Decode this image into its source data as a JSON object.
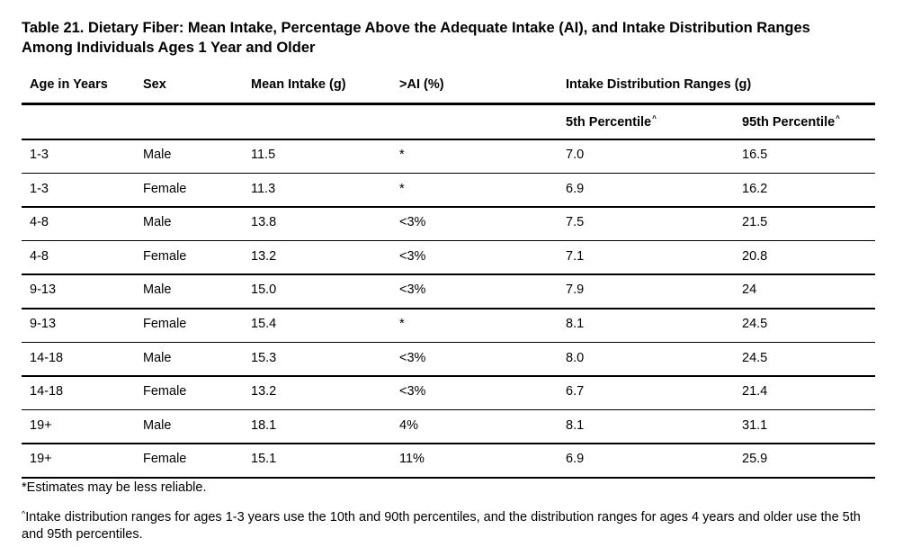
{
  "table": {
    "title_line1": "Table 21. Dietary Fiber: Mean Intake, Percentage Above the Adequate Intake (AI), and Intake Distribution Ranges",
    "title_line2": "Among Individuals Ages 1 Year and Older",
    "headers": {
      "age": "Age in Years",
      "sex": "Sex",
      "mean": "Mean Intake (g)",
      "above_ai": ">AI (%)",
      "ranges": "Intake Distribution Ranges (g)",
      "p5": "5th Percentile",
      "p95": "95th Percentile",
      "caret": "^"
    },
    "rows": [
      {
        "age": "1-3",
        "sex": "Male",
        "mean": "11.5",
        "above_ai": "*",
        "p5": "7.0",
        "p95": "16.5"
      },
      {
        "age": "1-3",
        "sex": "Female",
        "mean": "11.3",
        "above_ai": "*",
        "p5": "6.9",
        "p95": "16.2"
      },
      {
        "age": "4-8",
        "sex": "Male",
        "mean": "13.8",
        "above_ai": "<3%",
        "p5": "7.5",
        "p95": "21.5"
      },
      {
        "age": "4-8",
        "sex": "Female",
        "mean": "13.2",
        "above_ai": "<3%",
        "p5": "7.1",
        "p95": "20.8"
      },
      {
        "age": "9-13",
        "sex": "Male",
        "mean": "15.0",
        "above_ai": "<3%",
        "p5": "7.9",
        "p95": "24"
      },
      {
        "age": "9-13",
        "sex": "Female",
        "mean": "15.4",
        "above_ai": "*",
        "p5": "8.1",
        "p95": "24.5"
      },
      {
        "age": "14-18",
        "sex": "Male",
        "mean": "15.3",
        "above_ai": "<3%",
        "p5": "8.0",
        "p95": "24.5"
      },
      {
        "age": "14-18",
        "sex": "Female",
        "mean": "13.2",
        "above_ai": "<3%",
        "p5": "6.7",
        "p95": "21.4"
      },
      {
        "age": "19+",
        "sex": "Male",
        "mean": "18.1",
        "above_ai": "4%",
        "p5": "8.1",
        "p95": "31.1"
      },
      {
        "age": "19+",
        "sex": "Female",
        "mean": "15.1",
        "above_ai": "11%",
        "p5": "6.9",
        "p95": "25.9"
      }
    ],
    "footnotes": {
      "note1": "*Estimates may be less reliable.",
      "note2_mark": "^",
      "note2": "Intake distribution ranges for ages 1-3 years use the 10th and 90th percentiles, and the distribution ranges for ages 4 years and older use the 5th and 95th percentiles."
    }
  }
}
